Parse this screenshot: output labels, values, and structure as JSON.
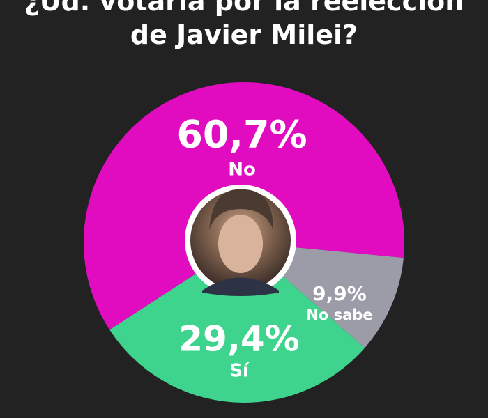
{
  "chart_data": {
    "type": "pie",
    "title": "¿Ud. votaría por la reelección de Javier Milei?",
    "categories": [
      "No",
      "No sabe",
      "Sí"
    ],
    "values": [
      60.7,
      9.9,
      29.4
    ],
    "value_labels": [
      "60,7%",
      "9,9%",
      "29,4%"
    ],
    "colors": [
      "#e10cbf",
      "#9b9ca8",
      "#3fd48d"
    ]
  }
}
